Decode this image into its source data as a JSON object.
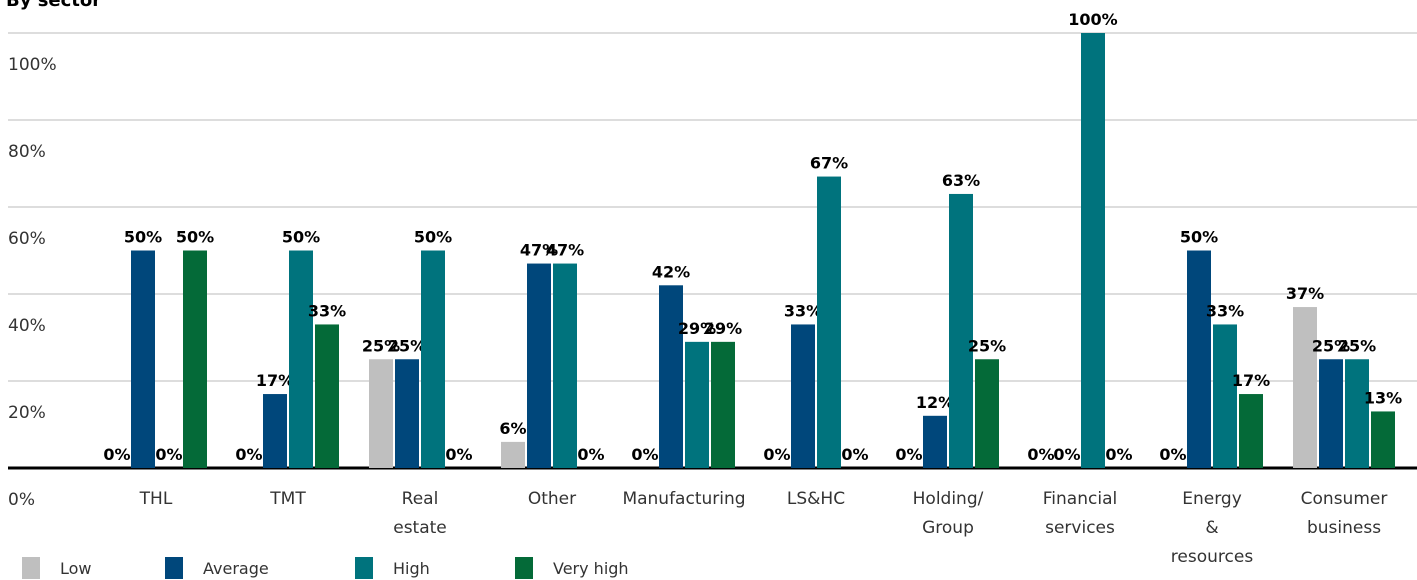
{
  "chart_data": {
    "type": "bar",
    "title": "By sector",
    "categories": [
      "THL",
      "TMT",
      "Real estate",
      "Other",
      "Manufacturing",
      "LS&HC",
      "Holding/ Group",
      "Financial services",
      "Energy & resources",
      "Consumer business"
    ],
    "series": [
      {
        "name": "Low",
        "color": "#bfbfbf",
        "values": [
          0,
          0,
          25,
          6,
          0,
          0,
          0,
          0,
          0,
          37
        ],
        "value_labels": [
          "0%",
          "0%",
          "25%",
          "6%",
          "0%",
          "0%",
          "0%",
          "0%",
          "0%",
          "37%"
        ]
      },
      {
        "name": "Average",
        "color": "#00477b",
        "values": [
          50,
          17,
          25,
          47,
          42,
          33,
          12,
          0,
          50,
          25
        ],
        "value_labels": [
          "50%",
          "17%",
          "25%",
          "47%",
          "42%",
          "33%",
          "12%",
          "0%",
          "50%",
          "25%"
        ]
      },
      {
        "name": "High",
        "color": "#00737d",
        "values": [
          0,
          50,
          50,
          47,
          29,
          67,
          63,
          100,
          33,
          25
        ],
        "value_labels": [
          "0%",
          "50%",
          "50%",
          "47%",
          "29%",
          "67%",
          "63%",
          "100%",
          "33%",
          "25%"
        ]
      },
      {
        "name": "Very high",
        "color": "#046a38",
        "values": [
          50,
          33,
          0,
          0,
          29,
          0,
          25,
          0,
          17,
          13
        ],
        "value_labels": [
          "50%",
          "33%",
          "0%",
          "0%",
          "29%",
          "0%",
          "25%",
          "0%",
          "17%",
          "13%"
        ]
      }
    ],
    "ylim": [
      0,
      100
    ],
    "yticks": [
      {
        "value": 0,
        "label": "0%"
      },
      {
        "value": 20,
        "label": "20%"
      },
      {
        "value": 40,
        "label": "40%"
      },
      {
        "value": 60,
        "label": "60%"
      },
      {
        "value": 80,
        "label": "80%"
      },
      {
        "value": 100,
        "label": "100%"
      }
    ],
    "grid": true,
    "legend": "bottom-left"
  }
}
